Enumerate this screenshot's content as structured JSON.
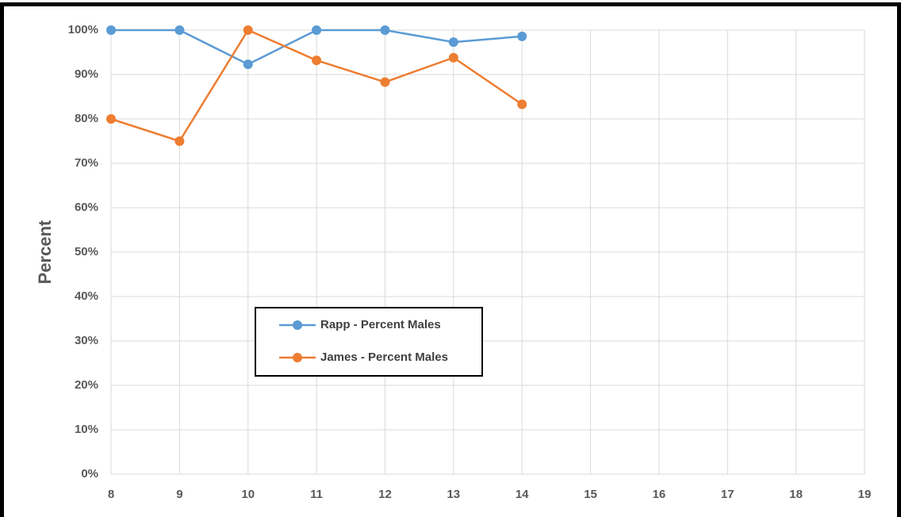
{
  "chart_data": {
    "type": "line",
    "y_label": "Percent",
    "x": [
      8,
      9,
      10,
      11,
      12,
      13,
      14
    ],
    "series": [
      {
        "name": "Rapp - Percent Males",
        "color": "#5b9bd5",
        "values": [
          100,
          100,
          92.3,
          100,
          100,
          97.3,
          98.6
        ]
      },
      {
        "name": "James - Percent Males",
        "color": "#ed7d31",
        "values": [
          80,
          75,
          100,
          93.2,
          88.3,
          93.8,
          83.3
        ]
      }
    ],
    "xlim": [
      8,
      19
    ],
    "xticks": [
      8,
      9,
      10,
      11,
      12,
      13,
      14,
      15,
      16,
      17,
      18,
      19
    ],
    "ylim": [
      0,
      100
    ],
    "yticks": [
      {
        "value": 0,
        "label": "0%"
      },
      {
        "value": 10,
        "label": "10%"
      },
      {
        "value": 20,
        "label": "20%"
      },
      {
        "value": 30,
        "label": "30%"
      },
      {
        "value": 40,
        "label": "40%"
      },
      {
        "value": 50,
        "label": "50%"
      },
      {
        "value": 60,
        "label": "60%"
      },
      {
        "value": 70,
        "label": "70%"
      },
      {
        "value": 80,
        "label": "80%"
      },
      {
        "value": 90,
        "label": "90%"
      },
      {
        "value": 100,
        "label": "100%"
      }
    ],
    "grid": true
  }
}
